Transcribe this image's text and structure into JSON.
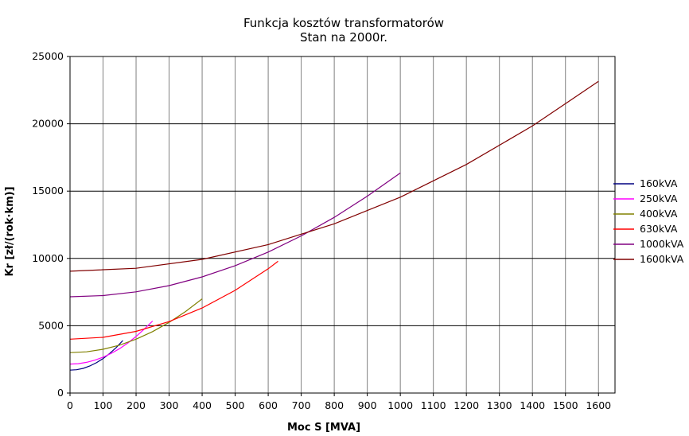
{
  "chart_data": {
    "type": "line",
    "title": "Funkcja kosztów transformatorów",
    "subtitle": "Stan na 2000r.",
    "xlabel": "Moc S [MVA]",
    "ylabel": "Kr [zł/(rok·km)]",
    "xlim": [
      0,
      1650
    ],
    "ylim": [
      0,
      25000
    ],
    "x_ticks": [
      0,
      100,
      200,
      300,
      400,
      500,
      600,
      700,
      800,
      900,
      1000,
      1100,
      1200,
      1300,
      1400,
      1500,
      1600
    ],
    "y_ticks": [
      0,
      5000,
      10000,
      15000,
      20000,
      25000
    ],
    "grid": true,
    "legend_position": "right",
    "series": [
      {
        "name": "160kVA",
        "color": "#000080",
        "x": [
          0,
          20,
          40,
          60,
          80,
          100,
          120,
          140,
          160
        ],
        "y": [
          1700,
          1730,
          1830,
          2010,
          2250,
          2560,
          2940,
          3380,
          3900
        ]
      },
      {
        "name": "250kVA",
        "color": "#ff00ff",
        "x": [
          0,
          25,
          50,
          75,
          100,
          125,
          150,
          175,
          200,
          225,
          250
        ],
        "y": [
          2150,
          2180,
          2280,
          2440,
          2660,
          2950,
          3300,
          3720,
          4200,
          4750,
          5350
        ]
      },
      {
        "name": "400kVA",
        "color": "#808000",
        "x": [
          0,
          50,
          100,
          150,
          200,
          250,
          300,
          350,
          400
        ],
        "y": [
          3000,
          3060,
          3250,
          3560,
          4000,
          4560,
          5250,
          6060,
          7000
        ]
      },
      {
        "name": "630kVA",
        "color": "#ff0000",
        "x": [
          0,
          100,
          200,
          300,
          400,
          500,
          600,
          630
        ],
        "y": [
          4000,
          4140,
          4580,
          5310,
          6320,
          7630,
          9230,
          9790
        ]
      },
      {
        "name": "1000kVA",
        "color": "#800080",
        "x": [
          0,
          100,
          200,
          300,
          400,
          500,
          600,
          700,
          800,
          900,
          1000
        ],
        "y": [
          7150,
          7240,
          7520,
          7980,
          8630,
          9460,
          10470,
          11670,
          13050,
          14620,
          16350
        ]
      },
      {
        "name": "1600kVA",
        "color": "#800000",
        "x": [
          0,
          200,
          400,
          600,
          800,
          1000,
          1200,
          1400,
          1600
        ],
        "y": [
          9050,
          9270,
          9930,
          11030,
          12570,
          14550,
          16980,
          19840,
          23150
        ]
      }
    ]
  }
}
